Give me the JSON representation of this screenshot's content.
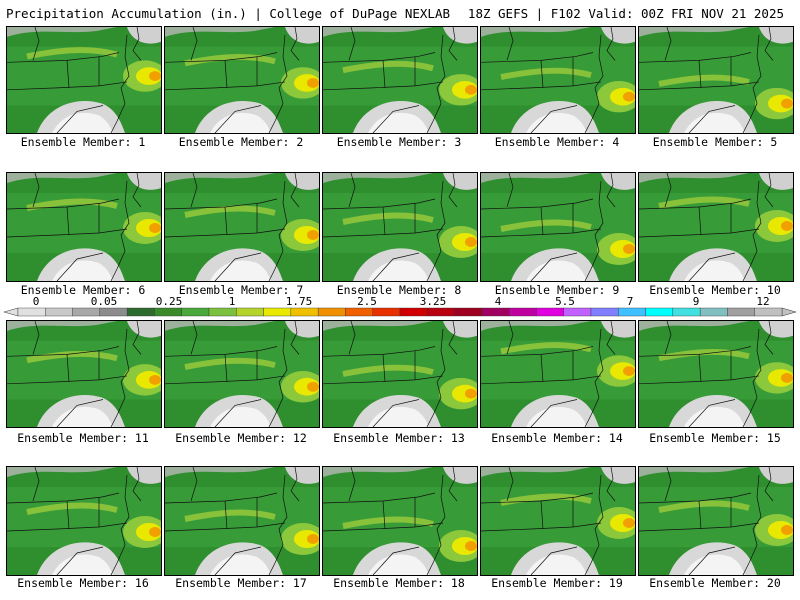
{
  "header": {
    "left": "Precipitation Accumulation (in.) | College of DuPage NEXLAB",
    "right": "18Z GEFS | F102 Valid: 00Z FRI NOV 21 2025"
  },
  "panels": [
    {
      "label": "Ensemble Member: 1"
    },
    {
      "label": "Ensemble Member: 2"
    },
    {
      "label": "Ensemble Member: 3"
    },
    {
      "label": "Ensemble Member: 4"
    },
    {
      "label": "Ensemble Member: 5"
    },
    {
      "label": "Ensemble Member: 6"
    },
    {
      "label": "Ensemble Member: 7"
    },
    {
      "label": "Ensemble Member: 8"
    },
    {
      "label": "Ensemble Member: 9"
    },
    {
      "label": "Ensemble Member: 10"
    },
    {
      "label": "Ensemble Member: 11"
    },
    {
      "label": "Ensemble Member: 12"
    },
    {
      "label": "Ensemble Member: 13"
    },
    {
      "label": "Ensemble Member: 14"
    },
    {
      "label": "Ensemble Member: 15"
    },
    {
      "label": "Ensemble Member: 16"
    },
    {
      "label": "Ensemble Member: 17"
    },
    {
      "label": "Ensemble Member: 18"
    },
    {
      "label": "Ensemble Member: 19"
    },
    {
      "label": "Ensemble Member: 20"
    }
  ],
  "colorbar": {
    "tick_labels": [
      "0",
      "0.05",
      "0.25",
      "1",
      "1.75",
      "2.5",
      "3.25",
      "4",
      "5.5",
      "7",
      "9",
      "12"
    ],
    "colors": [
      "#e0e0e0",
      "#c8c8c8",
      "#a8a8a8",
      "#8c8c8c",
      "#2e6b2e",
      "#3a8a2a",
      "#4aa83a",
      "#7cc040",
      "#b4d42c",
      "#e8e800",
      "#f0c000",
      "#f09000",
      "#f06000",
      "#e83000",
      "#d00000",
      "#b80010",
      "#a00020",
      "#a00060",
      "#c000a0",
      "#e000e0",
      "#c060ff",
      "#8080ff",
      "#40c0ff",
      "#00ffff",
      "#40e0e0",
      "#80c0c0",
      "#a0a0a0",
      "#c0c0c0"
    ]
  }
}
